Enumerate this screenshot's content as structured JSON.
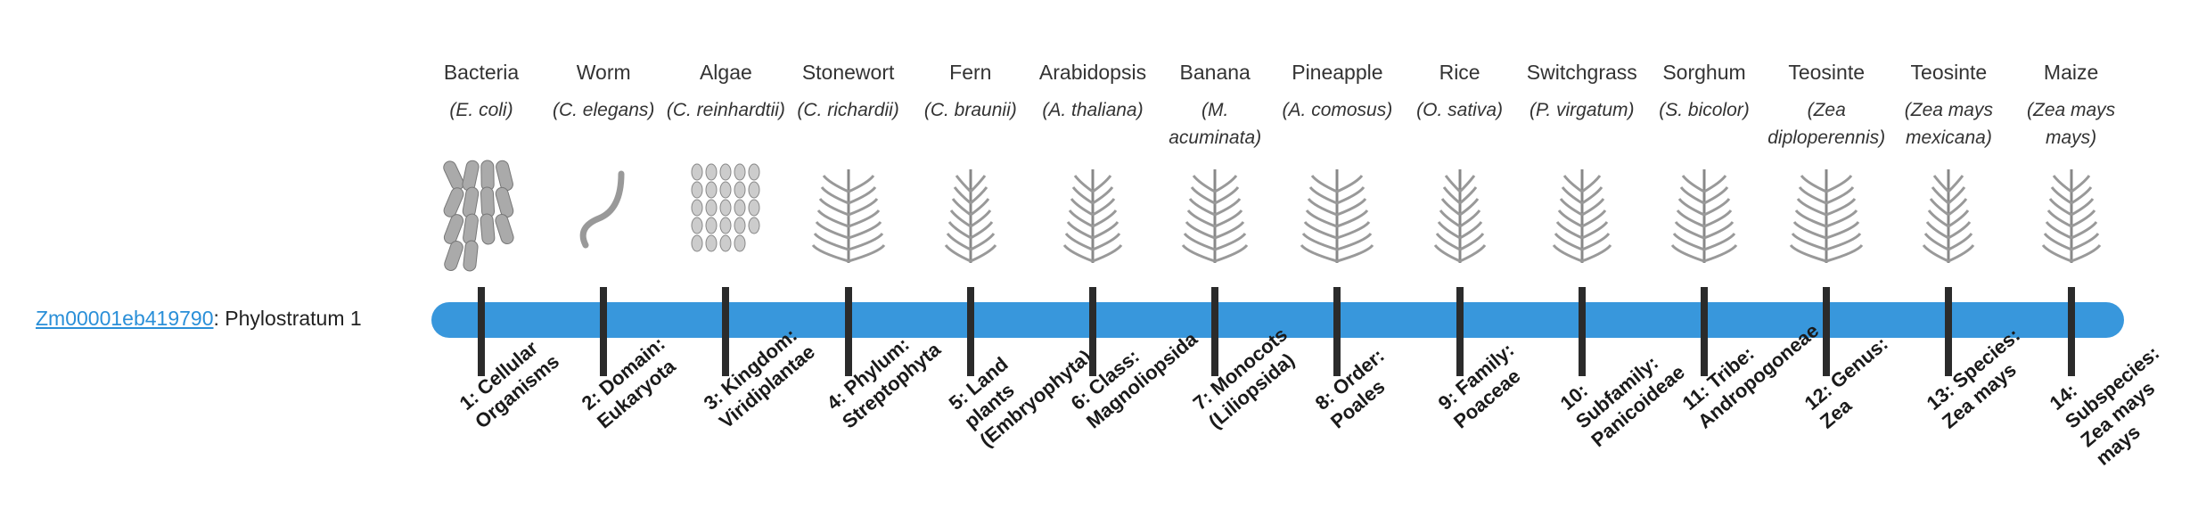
{
  "gene": {
    "id": "Zm00001eb419790",
    "label": ": Phylostratum 1"
  },
  "organisms": [
    {
      "name": "Bacteria",
      "species": "(E. coli)"
    },
    {
      "name": "Worm",
      "species": "(C. elegans)"
    },
    {
      "name": "Algae",
      "species": "(C. reinhardtii)"
    },
    {
      "name": "Stonewort",
      "species": "(C. richardii)"
    },
    {
      "name": "Fern",
      "species": "(C. braunii)"
    },
    {
      "name": "Arabidopsis",
      "species": "(A. thaliana)"
    },
    {
      "name": "Banana",
      "species": "(M. acuminata)"
    },
    {
      "name": "Pineapple",
      "species": "(A. comosus)"
    },
    {
      "name": "Rice",
      "species": "(O. sativa)"
    },
    {
      "name": "Switchgrass",
      "species": "(P. virgatum)"
    },
    {
      "name": "Sorghum",
      "species": "(S. bicolor)"
    },
    {
      "name": "Teosinte",
      "species": "(Zea diploperennis)"
    },
    {
      "name": "Teosinte",
      "species": "(Zea mays mexicana)"
    },
    {
      "name": "Maize",
      "species": "(Zea mays mays)"
    }
  ],
  "strata": [
    "1: Cellular Organisms",
    "2: Domain: Eukaryota",
    "3: Kingdom: Viridiplantae",
    "4: Phylum: Streptophyta",
    "5: Land plants (Embryophyta)",
    "6: Class: Magnoliopsida",
    "7: Monocots (Liliopsida)",
    "8: Order: Poales",
    "9: Family: Poaceae",
    "10: Subfamily: Panicoideae",
    "11: Tribe: Andropogoneae",
    "12: Genus: Zea",
    "13: Species: Zea mays",
    "14: Subspecies: Zea mays mays"
  ]
}
